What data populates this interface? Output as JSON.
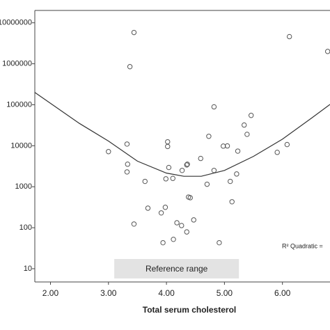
{
  "chart_data": {
    "type": "scatter",
    "x_label": "Total serum cholesterol",
    "annotations": [
      "Reference range",
      "R² Quadratic ="
    ],
    "reference_range": [
      3.1,
      5.25
    ],
    "log_y": true,
    "xlim": [
      1.73,
      6.82
    ],
    "ylim": [
      4.75,
      20000000
    ],
    "xticks": [
      {
        "value": 2,
        "label": "2.00"
      },
      {
        "value": 3,
        "label": "3.00"
      },
      {
        "value": 4,
        "label": "4.00"
      },
      {
        "value": 5,
        "label": "5.00"
      },
      {
        "value": 6,
        "label": "6.00"
      }
    ],
    "yticks": [
      10,
      100,
      1000,
      10000,
      100000,
      1000000,
      10000000
    ],
    "point_color": "#555555",
    "x": [
      3.44,
      3.37,
      6.12,
      6.78,
      4.82,
      5.46,
      5.34,
      5.39,
      4.73,
      3.32,
      4.02,
      4.02,
      4.98,
      5.05,
      5.23,
      6.08,
      5.91,
      3.0,
      3.33,
      4.04,
      4.36,
      4.35,
      4.27,
      4.59,
      3.32,
      4.82,
      5.21,
      3.63,
      3.99,
      4.11,
      5.1,
      4.7,
      4.38,
      4.41,
      3.68,
      3.98,
      3.91,
      5.13,
      3.44,
      4.18,
      4.26,
      4.47,
      4.35,
      4.12,
      3.94,
      4.91
    ],
    "values": [
      5800000,
      850000,
      4600000,
      2000000,
      89000,
      55000,
      32000,
      19000,
      17000,
      11000,
      12500,
      9600,
      9800,
      9900,
      7400,
      10700,
      6900,
      7200,
      3550,
      2950,
      3550,
      3400,
      2500,
      4900,
      2300,
      2500,
      2050,
      1350,
      1560,
      1600,
      1350,
      1150,
      560,
      540,
      300,
      315,
      230,
      430,
      123,
      132,
      113,
      155,
      79,
      52,
      43,
      43
    ],
    "fit_line": {
      "color": "#333333",
      "x": [
        1.73,
        2.5,
        3.0,
        3.5,
        4.0,
        4.3,
        4.6,
        5.0,
        5.5,
        6.0,
        6.5,
        6.82
      ],
      "values": [
        200000,
        35000,
        13000,
        4200,
        2150,
        1800,
        1800,
        2500,
        5500,
        14500,
        47000,
        102000
      ]
    }
  }
}
